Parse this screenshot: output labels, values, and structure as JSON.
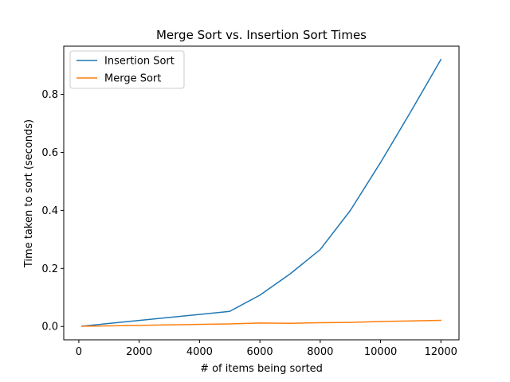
{
  "chart_data": {
    "type": "line",
    "title": "Merge Sort vs. Insertion Sort Times",
    "xlabel": "# of items being sorted",
    "ylabel": "Time taken to sort (seconds)",
    "xlim": [
      -500,
      12600
    ],
    "ylim": [
      -0.046,
      0.966
    ],
    "xticks": [
      0,
      2000,
      4000,
      6000,
      8000,
      10000,
      12000
    ],
    "yticks": [
      0.0,
      0.2,
      0.4,
      0.6,
      0.8
    ],
    "xtick_labels": [
      "0",
      "2000",
      "4000",
      "6000",
      "8000",
      "10000",
      "12000"
    ],
    "ytick_labels": [
      "0.0",
      "0.2",
      "0.4",
      "0.6",
      "0.8"
    ],
    "grid": false,
    "legend_position": "top-left",
    "series": [
      {
        "name": "Insertion Sort",
        "color": "#1f77b4",
        "x": [
          100,
          5000,
          6000,
          7000,
          8000,
          9000,
          10000,
          11000,
          12000
        ],
        "y": [
          0.001,
          0.052,
          0.108,
          0.181,
          0.265,
          0.4,
          0.565,
          0.74,
          0.92
        ]
      },
      {
        "name": "Merge Sort",
        "color": "#ff7f0e",
        "x": [
          100,
          5000,
          6000,
          7000,
          8000,
          9000,
          10000,
          11000,
          12000
        ],
        "y": [
          0.0005,
          0.009,
          0.012,
          0.011,
          0.013,
          0.014,
          0.017,
          0.019,
          0.021
        ]
      }
    ]
  }
}
